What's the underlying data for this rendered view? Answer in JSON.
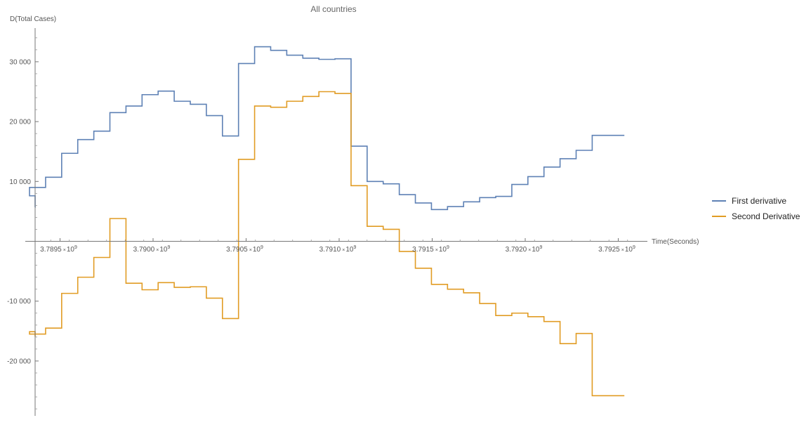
{
  "chart_data": {
    "type": "line",
    "step": true,
    "title": "All countries",
    "ylabel": "D(Total Cases)",
    "xlabel": "Time(Seconds)",
    "xlim": [
      3789150000.0,
      3792640000.0
    ],
    "ylim": [
      -29000,
      36000
    ],
    "x_ticks": [
      {
        "value": 3789500000.0,
        "mantissa": "3.7895",
        "base": "10",
        "exp": "9"
      },
      {
        "value": 3790000000.0,
        "mantissa": "3.7900",
        "base": "10",
        "exp": "9"
      },
      {
        "value": 3790500000.0,
        "mantissa": "3.7905",
        "base": "10",
        "exp": "9"
      },
      {
        "value": 3791000000.0,
        "mantissa": "3.7910",
        "base": "10",
        "exp": "9"
      },
      {
        "value": 3791500000.0,
        "mantissa": "3.7915",
        "base": "10",
        "exp": "9"
      },
      {
        "value": 3792000000.0,
        "mantissa": "3.7920",
        "base": "10",
        "exp": "9"
      },
      {
        "value": 3792500000.0,
        "mantissa": "3.7925",
        "base": "10",
        "exp": "9"
      }
    ],
    "y_ticks": [
      {
        "value": 30000,
        "label": "30 000"
      },
      {
        "value": 20000,
        "label": "20 000"
      },
      {
        "value": 10000,
        "label": "10 000"
      },
      {
        "value": -10000,
        "label": "-10 000"
      },
      {
        "value": -20000,
        "label": "-20 000"
      }
    ],
    "x": [
      3789163200.0,
      3789249600.0,
      3789336000.0,
      3789422400.0,
      3789508800.0,
      3789595200.0,
      3789681600.0,
      3789768000.0,
      3789854400.0,
      3789940800.0,
      3790027200.0,
      3790113600.0,
      3790200000.0,
      3790286400.0,
      3790372800.0,
      3790459200.0,
      3790545600.0,
      3790632000.0,
      3790718400.0,
      3790804800.0,
      3790891200.0,
      3790977600.0,
      3791064000.0,
      3791150400.0,
      3791236800.0,
      3791323200.0,
      3791409600.0,
      3791496000.0,
      3791582400.0,
      3791668800.0,
      3791755200.0,
      3791841600.0,
      3791928000.0,
      3792014400.0,
      3792100800.0,
      3792187200.0,
      3792273600.0,
      3792360000.0,
      3792446400.0,
      3792532800.0
    ],
    "x_end": 3792532800.0,
    "series": [
      {
        "name": "First derivative",
        "color": "#5e81b5",
        "values": [
          5700,
          7600,
          9000,
          10700,
          14700,
          17000,
          18400,
          21500,
          22600,
          24500,
          25100,
          23400,
          22900,
          21000,
          17600,
          29700,
          32500,
          31900,
          31100,
          30600,
          30400,
          30500,
          15900,
          10000,
          9600,
          7800,
          6400,
          5300,
          5800,
          6600,
          7300,
          7500,
          9500,
          10800,
          12400,
          13800,
          15200,
          17700,
          17700,
          17700
        ]
      },
      {
        "name": "Second Derivative",
        "color": "#e19c24",
        "values": [
          -15900,
          -15100,
          -15500,
          -14500,
          -8700,
          -6000,
          -2700,
          3800,
          -7000,
          -8100,
          -6900,
          -7700,
          -7600,
          -9500,
          -12900,
          13700,
          22600,
          22400,
          23400,
          24200,
          25000,
          24700,
          9300,
          2500,
          2000,
          -1700,
          -4500,
          -7200,
          -8000,
          -8600,
          -10400,
          -12400,
          -12000,
          -12600,
          -13400,
          -17100,
          -15400,
          -25800,
          -25800,
          -25800
        ]
      }
    ],
    "legend": "right"
  }
}
